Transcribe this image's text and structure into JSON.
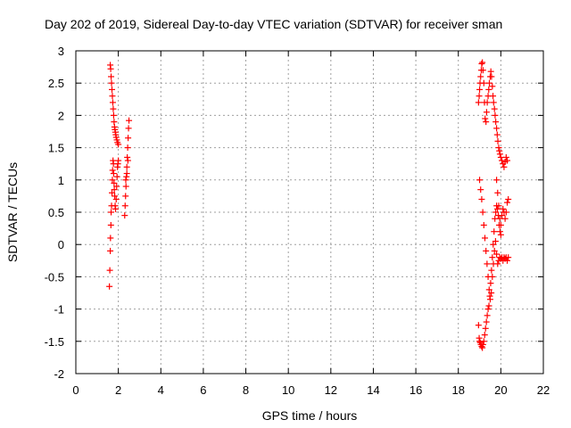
{
  "chart_data": {
    "type": "scatter",
    "title": "Day 202 of 2019, Sidereal Day-to-day VTEC variation (SDTVAR) for receiver sman",
    "xlabel": "GPS time / hours",
    "ylabel": "SDTVAR / TECUs",
    "xlim": [
      0,
      22
    ],
    "ylim": [
      -2,
      3
    ],
    "xticks": [
      "0",
      "2",
      "4",
      "6",
      "8",
      "10",
      "12",
      "14",
      "16",
      "18",
      "20",
      "22"
    ],
    "yticks": [
      "-2",
      "-1.5",
      "-1",
      "-0.5",
      "0",
      "0.5",
      "1",
      "1.5",
      "2",
      "2.5",
      "3"
    ],
    "grid": true,
    "marker": "+",
    "color": "#ff0000",
    "series": [
      {
        "name": "SDTVAR",
        "x": [
          1.58,
          1.6,
          1.62,
          1.63,
          1.65,
          1.66,
          1.68,
          1.7,
          1.72,
          1.73,
          1.75,
          1.77,
          1.78,
          1.8,
          1.81,
          1.83,
          1.85,
          1.87,
          1.9,
          1.92,
          1.94,
          1.96,
          1.98,
          2.0,
          1.62,
          1.64,
          1.66,
          1.68,
          1.7,
          1.72,
          1.74,
          1.76,
          1.78,
          1.8,
          1.82,
          1.84,
          1.86,
          1.88,
          1.9,
          1.93,
          1.96,
          2.0,
          2.3,
          2.32,
          2.34,
          2.36,
          2.38,
          2.4,
          2.42,
          2.44,
          2.46,
          2.48,
          2.5,
          2.35,
          2.4,
          2.45,
          18.95,
          18.98,
          19.0,
          19.02,
          19.05,
          19.08,
          19.1,
          19.13,
          19.16,
          19.2,
          19.23,
          19.26,
          19.3,
          19.33,
          19.36,
          19.4,
          19.43,
          19.46,
          19.5,
          19.53,
          19.56,
          19.6,
          19.63,
          19.66,
          19.7,
          19.73,
          19.76,
          19.8,
          19.83,
          19.86,
          19.9,
          19.93,
          19.96,
          20.0,
          20.05,
          20.1,
          20.15,
          20.2,
          20.25,
          20.3,
          18.95,
          18.98,
          19.0,
          19.03,
          19.06,
          19.1,
          19.13,
          19.16,
          19.2,
          19.24,
          19.28,
          19.32,
          19.36,
          19.4,
          19.44,
          19.48,
          19.52,
          19.56,
          19.6,
          19.64,
          19.68,
          19.72,
          19.76,
          19.8,
          19.84,
          19.88,
          19.92,
          19.96,
          20.0,
          19.0,
          19.05,
          19.1,
          19.15,
          19.2,
          19.25,
          19.3,
          19.35,
          19.4,
          19.45,
          19.5,
          19.55,
          19.6,
          19.65,
          19.7,
          19.75,
          19.8,
          19.85,
          19.9,
          19.95,
          20.0,
          20.05,
          20.1,
          20.15,
          20.2,
          20.25,
          20.3,
          20.35,
          19.8,
          19.85,
          19.9,
          19.95,
          20.0,
          20.05,
          20.1,
          20.15,
          20.2,
          20.25,
          20.3,
          20.35
        ],
        "y": [
          -0.65,
          -0.4,
          -0.1,
          0.1,
          0.3,
          0.5,
          0.6,
          0.8,
          1.0,
          1.15,
          1.3,
          1.25,
          1.1,
          0.95,
          0.85,
          0.75,
          0.6,
          0.55,
          0.7,
          0.9,
          1.05,
          1.2,
          1.25,
          1.3,
          2.78,
          2.72,
          2.6,
          2.5,
          2.4,
          2.3,
          2.2,
          2.1,
          2.0,
          1.9,
          1.82,
          1.78,
          1.74,
          1.7,
          1.66,
          1.62,
          1.58,
          1.55,
          0.45,
          0.6,
          0.75,
          0.9,
          1.05,
          1.2,
          1.35,
          1.5,
          1.65,
          1.8,
          1.92,
          1.0,
          1.1,
          1.3,
          2.2,
          2.3,
          2.4,
          2.5,
          2.6,
          2.7,
          2.8,
          2.82,
          2.7,
          2.5,
          2.2,
          1.95,
          1.9,
          2.05,
          2.2,
          2.3,
          2.4,
          2.5,
          2.6,
          2.68,
          2.6,
          2.45,
          2.3,
          2.2,
          2.1,
          2.0,
          1.9,
          1.8,
          1.7,
          1.6,
          1.5,
          1.45,
          1.4,
          1.35,
          1.3,
          1.25,
          1.2,
          1.28,
          1.35,
          1.3,
          -1.25,
          -1.45,
          -1.5,
          -1.52,
          -1.55,
          -1.58,
          -1.6,
          -1.55,
          -1.5,
          -1.4,
          -1.3,
          -1.2,
          -1.1,
          -1.0,
          -0.95,
          -0.8,
          -0.6,
          -0.4,
          -0.2,
          0.0,
          0.2,
          0.4,
          0.5,
          0.6,
          0.55,
          0.45,
          0.3,
          0.2,
          0.15,
          1.0,
          0.85,
          0.7,
          0.5,
          0.3,
          0.1,
          -0.1,
          -0.3,
          -0.5,
          -0.7,
          -0.85,
          -0.75,
          -0.5,
          -0.3,
          -0.1,
          0.05,
          -0.15,
          -0.3,
          -0.25,
          -0.2,
          -0.22,
          -0.2,
          -0.25,
          -0.2,
          -0.22,
          -0.2,
          -0.25,
          -0.2,
          1.0,
          0.8,
          0.6,
          0.4,
          0.3,
          0.45,
          0.55,
          0.5,
          0.4,
          0.5,
          0.65,
          0.7
        ]
      }
    ]
  }
}
